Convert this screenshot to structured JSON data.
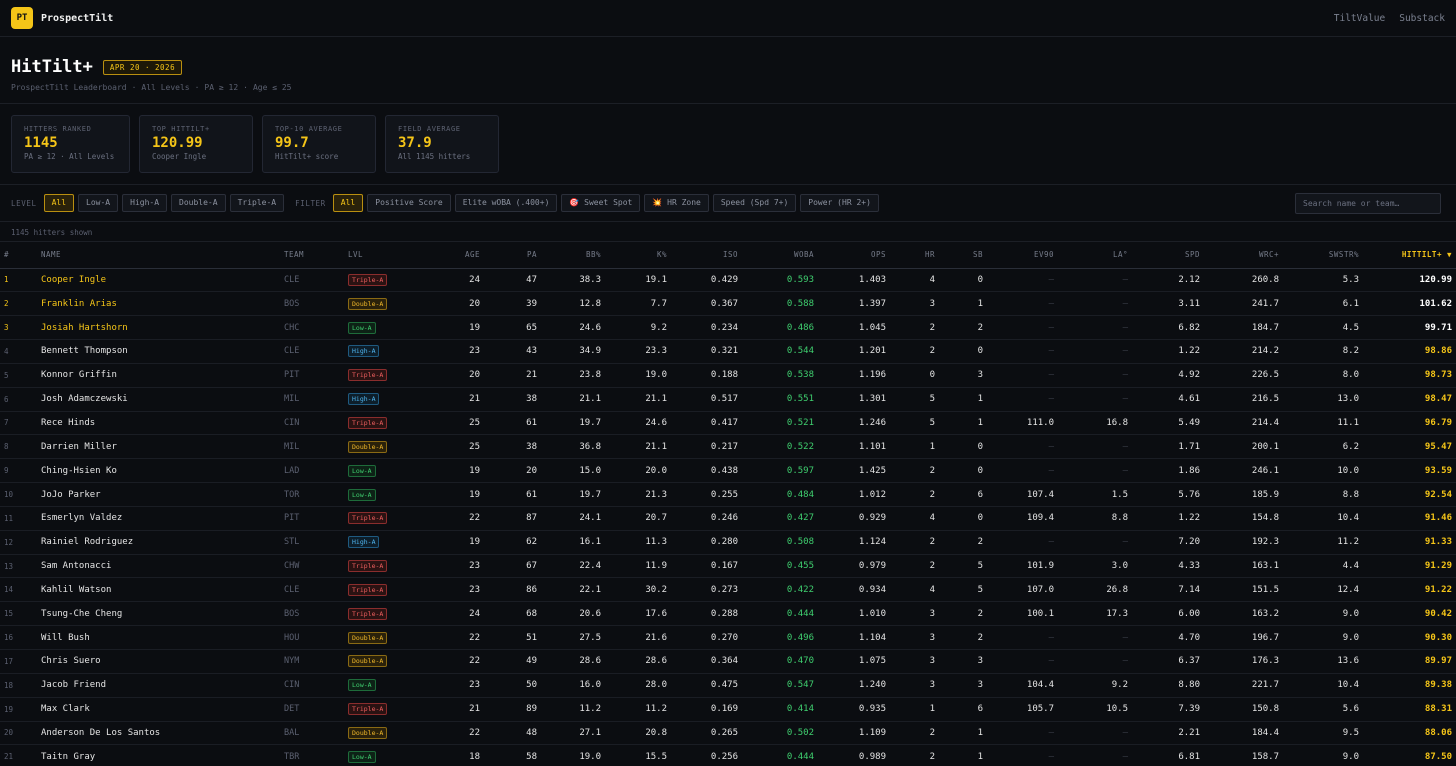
{
  "app": {
    "logo": "PT",
    "name": "ProspectTilt",
    "links": [
      "TiltValue",
      "Substack"
    ]
  },
  "header": {
    "title": "HitTilt+",
    "date_badge": "APR 20 · 2026",
    "subtitle": [
      "ProspectTilt Leaderboard",
      "·",
      "All Levels",
      "·",
      "PA ≥ 12",
      "·",
      "Age ≤ 25"
    ]
  },
  "stats": [
    {
      "label": "HITTERS RANKED",
      "value": "1145",
      "sub": "PA ≥ 12 · All Levels"
    },
    {
      "label": "TOP HITTILT+",
      "value": "120.99",
      "sub": "Cooper Ingle"
    },
    {
      "label": "TOP-10 AVERAGE",
      "value": "99.7",
      "sub": "HitTilt+ score"
    },
    {
      "label": "FIELD AVERAGE",
      "value": "37.9",
      "sub": "All 1145 hitters"
    }
  ],
  "filters": {
    "level_label": "LEVEL",
    "levels": [
      "All",
      "Low-A",
      "High-A",
      "Double-A",
      "Triple-A"
    ],
    "level_active": "All",
    "filter_label": "FILTER",
    "filters": [
      "All",
      "Positive Score",
      "Elite wOBA (.400+)",
      "🎯 Sweet Spot",
      "💥 HR Zone",
      "Speed (Spd 7+)",
      "Power (HR 2+)"
    ],
    "filter_active": "All",
    "search_placeholder": "Search name or team…"
  },
  "count_text": "1145 hitters shown",
  "table": {
    "columns": [
      "#",
      "NAME",
      "TEAM",
      "LVL",
      "AGE",
      "PA",
      "BB%",
      "K%",
      "ISO",
      "WOBA",
      "OPS",
      "HR",
      "SB",
      "EV90",
      "LA°",
      "SPD",
      "WRC+",
      "SWSTR%",
      "HITTILT+ ▼"
    ],
    "rows": [
      [
        "1",
        "Cooper Ingle",
        "CLE",
        "Triple-A",
        "24",
        "47",
        "38.3",
        "19.1",
        "0.429",
        "0.593",
        "1.403",
        "4",
        "0",
        "–",
        "–",
        "2.12",
        "260.8",
        "5.3",
        "120.99"
      ],
      [
        "2",
        "Franklin Arias",
        "BOS",
        "Double-A",
        "20",
        "39",
        "12.8",
        "7.7",
        "0.367",
        "0.588",
        "1.397",
        "3",
        "1",
        "–",
        "–",
        "3.11",
        "241.7",
        "6.1",
        "101.62"
      ],
      [
        "3",
        "Josiah Hartshorn",
        "CHC",
        "Low-A",
        "19",
        "65",
        "24.6",
        "9.2",
        "0.234",
        "0.486",
        "1.045",
        "2",
        "2",
        "–",
        "–",
        "6.82",
        "184.7",
        "4.5",
        "99.71"
      ],
      [
        "4",
        "Bennett Thompson",
        "CLE",
        "High-A",
        "23",
        "43",
        "34.9",
        "23.3",
        "0.321",
        "0.544",
        "1.201",
        "2",
        "0",
        "–",
        "–",
        "1.22",
        "214.2",
        "8.2",
        "98.86"
      ],
      [
        "5",
        "Konnor Griffin",
        "PIT",
        "Triple-A",
        "20",
        "21",
        "23.8",
        "19.0",
        "0.188",
        "0.538",
        "1.196",
        "0",
        "3",
        "–",
        "–",
        "4.92",
        "226.5",
        "8.0",
        "98.73"
      ],
      [
        "6",
        "Josh Adamczewski",
        "MIL",
        "High-A",
        "21",
        "38",
        "21.1",
        "21.1",
        "0.517",
        "0.551",
        "1.301",
        "5",
        "1",
        "–",
        "–",
        "4.61",
        "216.5",
        "13.0",
        "98.47"
      ],
      [
        "7",
        "Rece Hinds",
        "CIN",
        "Triple-A",
        "25",
        "61",
        "19.7",
        "24.6",
        "0.417",
        "0.521",
        "1.246",
        "5",
        "1",
        "111.0",
        "16.8",
        "5.49",
        "214.4",
        "11.1",
        "96.79"
      ],
      [
        "8",
        "Darrien Miller",
        "MIL",
        "Double-A",
        "25",
        "38",
        "36.8",
        "21.1",
        "0.217",
        "0.522",
        "1.101",
        "1",
        "0",
        "–",
        "–",
        "1.71",
        "200.1",
        "6.2",
        "95.47"
      ],
      [
        "9",
        "Ching-Hsien Ko",
        "LAD",
        "Low-A",
        "19",
        "20",
        "15.0",
        "20.0",
        "0.438",
        "0.597",
        "1.425",
        "2",
        "0",
        "–",
        "–",
        "1.86",
        "246.1",
        "10.0",
        "93.59"
      ],
      [
        "10",
        "JoJo Parker",
        "TOR",
        "Low-A",
        "19",
        "61",
        "19.7",
        "21.3",
        "0.255",
        "0.484",
        "1.012",
        "2",
        "6",
        "107.4",
        "1.5",
        "5.76",
        "185.9",
        "8.8",
        "92.54"
      ],
      [
        "11",
        "Esmerlyn Valdez",
        "PIT",
        "Triple-A",
        "22",
        "87",
        "24.1",
        "20.7",
        "0.246",
        "0.427",
        "0.929",
        "4",
        "0",
        "109.4",
        "8.8",
        "1.22",
        "154.8",
        "10.4",
        "91.46"
      ],
      [
        "12",
        "Rainiel Rodriguez",
        "STL",
        "High-A",
        "19",
        "62",
        "16.1",
        "11.3",
        "0.280",
        "0.508",
        "1.124",
        "2",
        "2",
        "–",
        "–",
        "7.20",
        "192.3",
        "11.2",
        "91.33"
      ],
      [
        "13",
        "Sam Antonacci",
        "CHW",
        "Triple-A",
        "23",
        "67",
        "22.4",
        "11.9",
        "0.167",
        "0.455",
        "0.979",
        "2",
        "5",
        "101.9",
        "3.0",
        "4.33",
        "163.1",
        "4.4",
        "91.29"
      ],
      [
        "14",
        "Kahlil Watson",
        "CLE",
        "Triple-A",
        "23",
        "86",
        "22.1",
        "30.2",
        "0.273",
        "0.422",
        "0.934",
        "4",
        "5",
        "107.0",
        "26.8",
        "7.14",
        "151.5",
        "12.4",
        "91.22"
      ],
      [
        "15",
        "Tsung-Che Cheng",
        "BOS",
        "Triple-A",
        "24",
        "68",
        "20.6",
        "17.6",
        "0.288",
        "0.444",
        "1.010",
        "3",
        "2",
        "100.1",
        "17.3",
        "6.00",
        "163.2",
        "9.0",
        "90.42"
      ],
      [
        "16",
        "Will Bush",
        "HOU",
        "Double-A",
        "22",
        "51",
        "27.5",
        "21.6",
        "0.270",
        "0.496",
        "1.104",
        "3",
        "2",
        "–",
        "–",
        "4.70",
        "196.7",
        "9.0",
        "90.30"
      ],
      [
        "17",
        "Chris Suero",
        "NYM",
        "Double-A",
        "22",
        "49",
        "28.6",
        "28.6",
        "0.364",
        "0.470",
        "1.075",
        "3",
        "3",
        "–",
        "–",
        "6.37",
        "176.3",
        "13.6",
        "89.97"
      ],
      [
        "18",
        "Jacob Friend",
        "CIN",
        "Low-A",
        "23",
        "50",
        "16.0",
        "28.0",
        "0.475",
        "0.547",
        "1.240",
        "3",
        "3",
        "104.4",
        "9.2",
        "8.80",
        "221.7",
        "10.4",
        "89.38"
      ],
      [
        "19",
        "Max Clark",
        "DET",
        "Triple-A",
        "21",
        "89",
        "11.2",
        "11.2",
        "0.169",
        "0.414",
        "0.935",
        "1",
        "6",
        "105.7",
        "10.5",
        "7.39",
        "150.8",
        "5.6",
        "88.31"
      ],
      [
        "20",
        "Anderson De Los Santos",
        "BAL",
        "Double-A",
        "22",
        "48",
        "27.1",
        "20.8",
        "0.265",
        "0.502",
        "1.109",
        "2",
        "1",
        "–",
        "–",
        "2.21",
        "184.4",
        "9.5",
        "88.06"
      ],
      [
        "21",
        "Taitn Gray",
        "TBR",
        "Low-A",
        "18",
        "58",
        "19.0",
        "15.5",
        "0.256",
        "0.444",
        "0.989",
        "2",
        "1",
        "–",
        "–",
        "6.81",
        "158.7",
        "9.0",
        "87.50"
      ]
    ]
  }
}
